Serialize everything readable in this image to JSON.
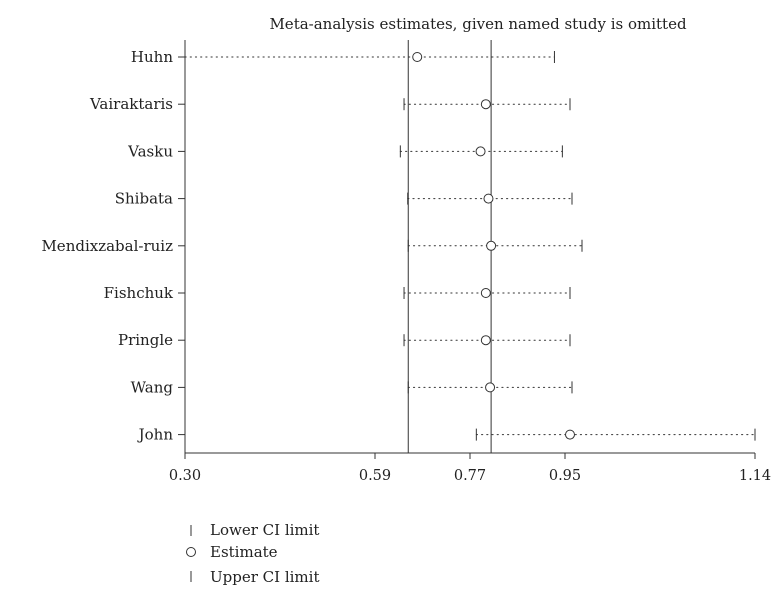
{
  "chart_data": {
    "type": "forest",
    "title": "Meta-analysis estimates, given named study is omitted",
    "x_ticks": [
      {
        "value": 0.3,
        "label": "0.30"
      },
      {
        "value": 0.59,
        "label": "0.59"
      },
      {
        "value": 0.77,
        "label": "0.77"
      },
      {
        "value": 0.95,
        "label": "0.95"
      },
      {
        "value": 1.14,
        "label": "1.14"
      }
    ],
    "studies": [
      {
        "name": "Huhn",
        "lower": 0.3,
        "estimate": 0.67,
        "upper": 0.93
      },
      {
        "name": "Vairaktaris",
        "lower": 0.645,
        "estimate": 0.8,
        "upper": 0.955
      },
      {
        "name": "Vasku",
        "lower": 0.638,
        "estimate": 0.79,
        "upper": 0.945
      },
      {
        "name": "Shibata",
        "lower": 0.652,
        "estimate": 0.805,
        "upper": 0.957
      },
      {
        "name": "Mendixzabal-ruiz",
        "lower": 0.653,
        "estimate": 0.81,
        "upper": 0.967
      },
      {
        "name": "Fishchuk",
        "lower": 0.645,
        "estimate": 0.8,
        "upper": 0.955
      },
      {
        "name": "Pringle",
        "lower": 0.645,
        "estimate": 0.8,
        "upper": 0.955
      },
      {
        "name": "Wang",
        "lower": 0.653,
        "estimate": 0.808,
        "upper": 0.957
      },
      {
        "name": "John",
        "lower": 0.782,
        "estimate": 0.955,
        "upper": 1.14
      }
    ],
    "reference_lines": [
      0.653,
      0.81
    ],
    "legend": {
      "lower": "Lower CI limit",
      "estimate": "Estimate",
      "upper": "Upper CI limit"
    }
  }
}
